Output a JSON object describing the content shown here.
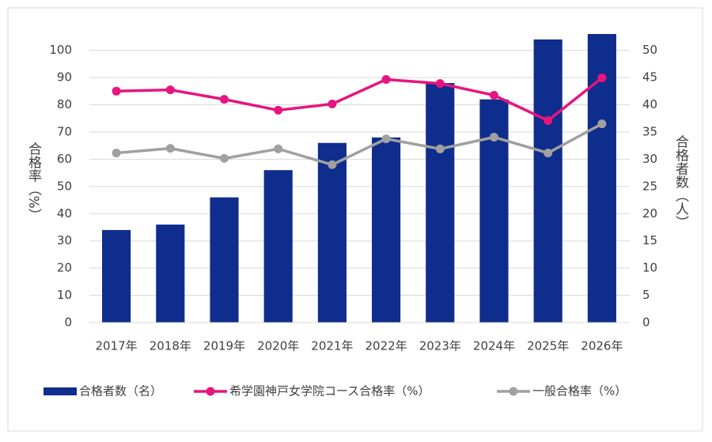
{
  "chart_data": {
    "type": "bar",
    "categories": [
      "2017年",
      "2018年",
      "2019年",
      "2020年",
      "2021年",
      "2022年",
      "2023年",
      "2024年",
      "2025年",
      "2026年"
    ],
    "y_label": "合格率（%）",
    "y2_label": "合格者数（人）",
    "series": [
      {
        "name": "合格者数（名）",
        "type": "bar",
        "axis": "y2",
        "color": "#0f2d8c",
        "values": [
          17,
          18,
          23,
          28,
          33,
          34,
          44,
          41,
          52,
          53
        ]
      },
      {
        "name": "希学園神戸女学院コース合格率（%）",
        "type": "line",
        "color": "#e6157f",
        "values": [
          85,
          85.5,
          82,
          78,
          80.3,
          89.3,
          87.8,
          83.5,
          74.2,
          89.9
        ]
      },
      {
        "name": "一般合格率（%）",
        "type": "line",
        "color": "#a0a0a0",
        "values": [
          62.3,
          64,
          60.3,
          63.8,
          58,
          67.5,
          63.8,
          68.1,
          62.3,
          73
        ]
      }
    ],
    "ylim": [
      0,
      106
    ],
    "yticks": [
      0,
      10,
      20,
      30,
      40,
      50,
      60,
      70,
      80,
      90,
      100
    ],
    "y2lim": [
      0,
      53
    ],
    "y2ticks": [
      0,
      5,
      10,
      15,
      20,
      25,
      30,
      35,
      40,
      45,
      50
    ],
    "grid": true,
    "legend": "bottom"
  }
}
